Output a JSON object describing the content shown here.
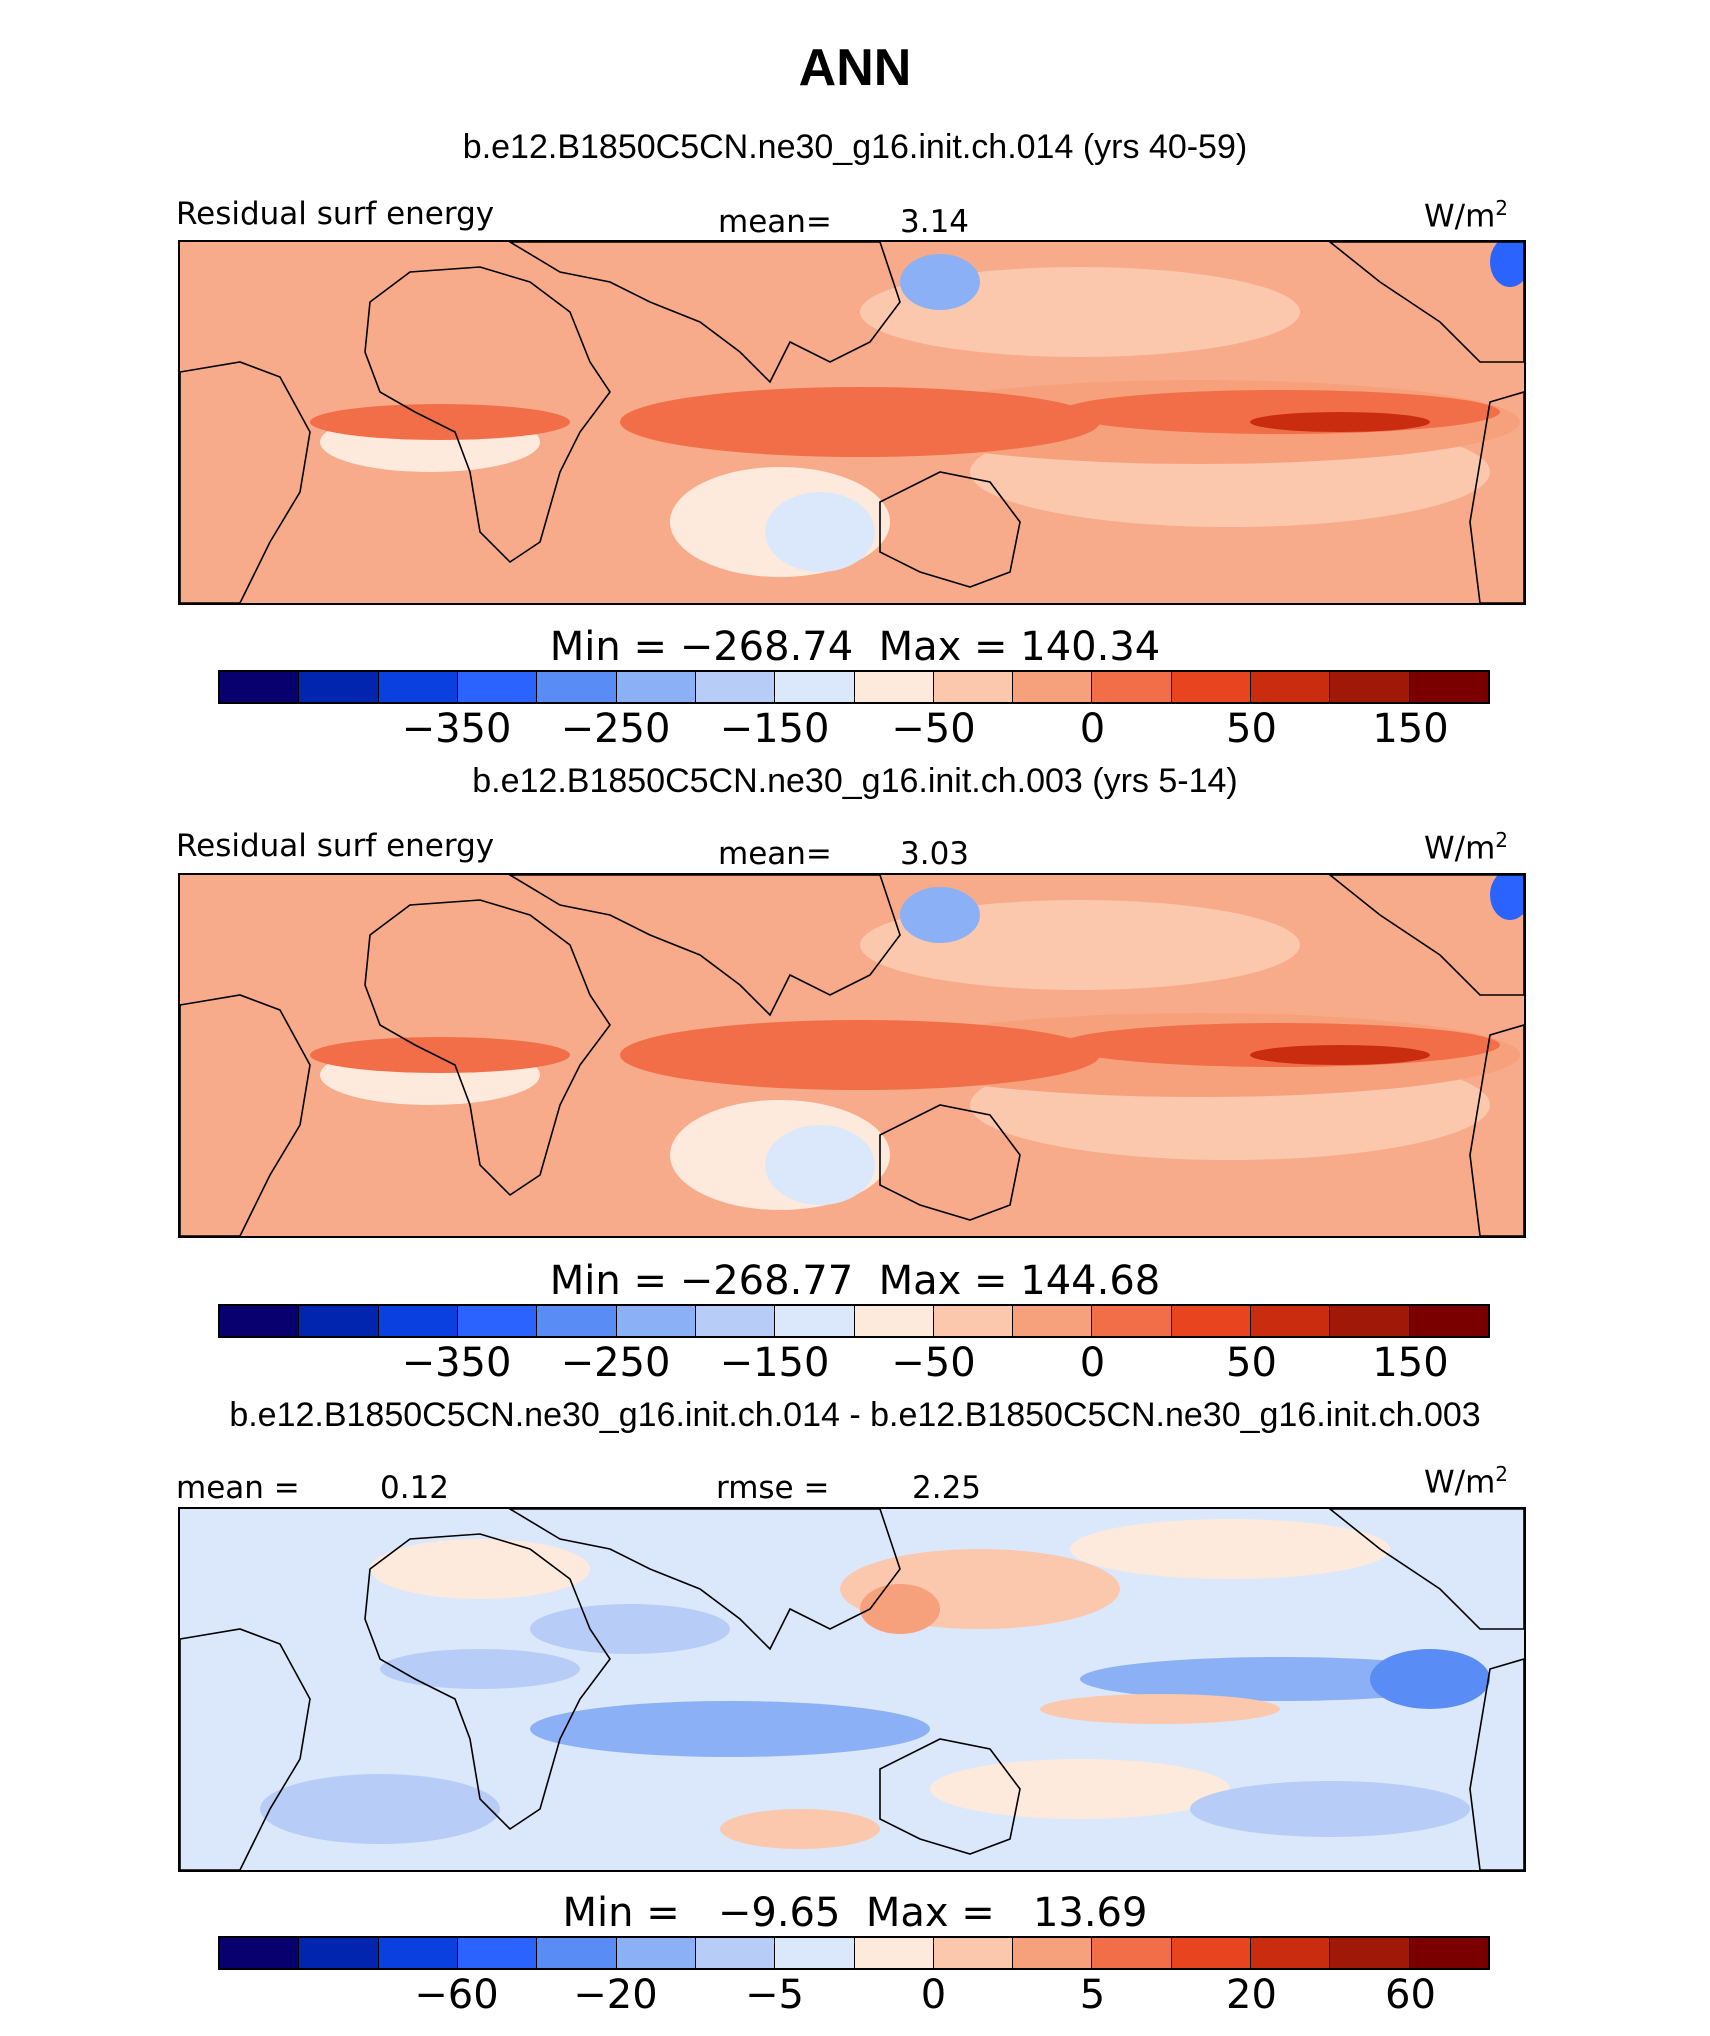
{
  "main_title": "ANN",
  "panels": [
    {
      "run_title": "b.e12.B1850C5CN.ne30_g16.init.ch.014 (yrs 40-59)",
      "variable": "Residual surf energy",
      "stat_left_label": "",
      "stat_left_value": "",
      "stat_mid_label": "mean=",
      "stat_mid_value": "3.14",
      "units": "W/m",
      "units_exp": "2",
      "minmax": "Min = −268.74  Max = 140.34",
      "ticks": [
        "−350",
        "−250",
        "−150",
        "−50",
        "0",
        "50",
        "150"
      ]
    },
    {
      "run_title": "b.e12.B1850C5CN.ne30_g16.init.ch.003 (yrs 5-14)",
      "variable": "Residual surf energy",
      "stat_left_label": "",
      "stat_left_value": "",
      "stat_mid_label": "mean=",
      "stat_mid_value": "3.03",
      "units": "W/m",
      "units_exp": "2",
      "minmax": "Min = −268.77  Max = 144.68",
      "ticks": [
        "−350",
        "−250",
        "−150",
        "−50",
        "0",
        "50",
        "150"
      ]
    },
    {
      "run_title": "b.e12.B1850C5CN.ne30_g16.init.ch.014 - b.e12.B1850C5CN.ne30_g16.init.ch.003",
      "variable": "",
      "stat_left_label": "mean =",
      "stat_left_value": "0.12",
      "stat_mid_label": "rmse =",
      "stat_mid_value": "2.25",
      "units": "W/m",
      "units_exp": "2",
      "minmax": "Min =   −9.65  Max =   13.69",
      "ticks": [
        "−60",
        "−20",
        "−5",
        "0",
        "5",
        "20",
        "60"
      ]
    }
  ],
  "chart_data": [
    {
      "type": "heatmap",
      "title": "ANN",
      "subtitle": "b.e12.B1850C5CN.ne30_g16.init.ch.014 (yrs 40-59)",
      "variable": "Residual surf energy",
      "units": "W/m2",
      "mean": 3.14,
      "min": -268.74,
      "max": 140.34,
      "colorbar_ticks": [
        -350,
        -250,
        -150,
        -50,
        0,
        50,
        150
      ]
    },
    {
      "type": "heatmap",
      "subtitle": "b.e12.B1850C5CN.ne30_g16.init.ch.003 (yrs 5-14)",
      "variable": "Residual surf energy",
      "units": "W/m2",
      "mean": 3.03,
      "min": -268.77,
      "max": 144.68,
      "colorbar_ticks": [
        -350,
        -250,
        -150,
        -50,
        0,
        50,
        150
      ]
    },
    {
      "type": "heatmap",
      "subtitle": "b.e12.B1850C5CN.ne30_g16.init.ch.014 - b.e12.B1850C5CN.ne30_g16.init.ch.003",
      "units": "W/m2",
      "mean": 0.12,
      "rmse": 2.25,
      "min": -9.65,
      "max": 13.69,
      "colorbar_ticks": [
        -60,
        -20,
        -5,
        0,
        5,
        20,
        60
      ]
    }
  ],
  "colorbar_colors": [
    "#08006e",
    "#0225b0",
    "#0a3fe0",
    "#2a63ff",
    "#5a8cf5",
    "#8cb0f5",
    "#b7cdf7",
    "#dbe8fb",
    "#fdeadc",
    "#fbc8ae",
    "#f7a07c",
    "#f26e48",
    "#e8441f",
    "#c92c0e",
    "#a01808",
    "#7a0000"
  ]
}
